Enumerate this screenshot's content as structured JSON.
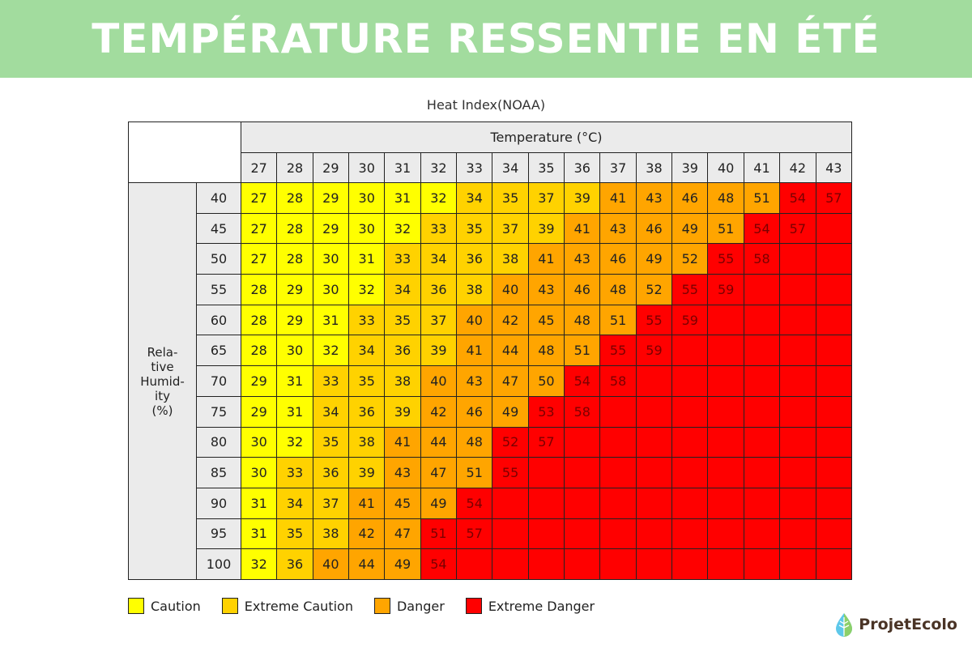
{
  "title": "TEMPÉRATURE RESSENTIE EN ÉTÉ",
  "brand": "ProjetEcolo",
  "colors": {
    "banner": "#a2dc9e",
    "C": "#ffff00",
    "EC": "#ffd200",
    "D": "#ffa500",
    "ED": "#ff0000"
  },
  "chart_data": {
    "type": "heatmap",
    "title": "Heat Index(NOAA)",
    "xlabel": "Temperature (°C)",
    "ylabel": "Rela- tive Humid- ity (%)",
    "x": [
      27,
      28,
      29,
      30,
      31,
      32,
      33,
      34,
      35,
      36,
      37,
      38,
      39,
      40,
      41,
      42,
      43
    ],
    "y": [
      40,
      45,
      50,
      55,
      60,
      65,
      70,
      75,
      80,
      85,
      90,
      95,
      100
    ],
    "values": [
      [
        27,
        28,
        29,
        30,
        31,
        32,
        34,
        35,
        37,
        39,
        41,
        43,
        46,
        48,
        51,
        54,
        57
      ],
      [
        27,
        28,
        29,
        30,
        32,
        33,
        35,
        37,
        39,
        41,
        43,
        46,
        49,
        51,
        54,
        57,
        null
      ],
      [
        27,
        28,
        30,
        31,
        33,
        34,
        36,
        38,
        41,
        43,
        46,
        49,
        52,
        55,
        58,
        null,
        null
      ],
      [
        28,
        29,
        30,
        32,
        34,
        36,
        38,
        40,
        43,
        46,
        48,
        52,
        55,
        59,
        null,
        null,
        null
      ],
      [
        28,
        29,
        31,
        33,
        35,
        37,
        40,
        42,
        45,
        48,
        51,
        55,
        59,
        null,
        null,
        null,
        null
      ],
      [
        28,
        30,
        32,
        34,
        36,
        39,
        41,
        44,
        48,
        51,
        55,
        59,
        null,
        null,
        null,
        null,
        null
      ],
      [
        29,
        31,
        33,
        35,
        38,
        40,
        43,
        47,
        50,
        54,
        58,
        null,
        null,
        null,
        null,
        null,
        null
      ],
      [
        29,
        31,
        34,
        36,
        39,
        42,
        46,
        49,
        53,
        58,
        null,
        null,
        null,
        null,
        null,
        null,
        null
      ],
      [
        30,
        32,
        35,
        38,
        41,
        44,
        48,
        52,
        57,
        null,
        null,
        null,
        null,
        null,
        null,
        null,
        null
      ],
      [
        30,
        33,
        36,
        39,
        43,
        47,
        51,
        55,
        null,
        null,
        null,
        null,
        null,
        null,
        null,
        null,
        null
      ],
      [
        31,
        34,
        37,
        41,
        45,
        49,
        54,
        null,
        null,
        null,
        null,
        null,
        null,
        null,
        null,
        null,
        null
      ],
      [
        31,
        35,
        38,
        42,
        47,
        51,
        57,
        null,
        null,
        null,
        null,
        null,
        null,
        null,
        null,
        null,
        null
      ],
      [
        32,
        36,
        40,
        44,
        49,
        54,
        null,
        null,
        null,
        null,
        null,
        null,
        null,
        null,
        null,
        null,
        null
      ]
    ],
    "categories_matrix": [
      "C C C C C C EC EC EC EC D D D D D ED ED",
      "C C C C C EC EC EC EC D D D D D ED ED ED",
      "C C C C EC EC EC EC D D D D D ED ED ED ED",
      "C C C C EC EC EC D D D D D ED ED ED ED ED",
      "C C C EC EC EC D D D D D ED ED ED ED ED ED",
      "C C C EC EC EC D D D D ED ED ED ED ED ED ED",
      "C C EC EC EC D D D D ED ED ED ED ED ED ED ED",
      "C C EC EC EC D D D ED ED ED ED ED ED ED ED ED",
      "C C EC EC D D D ED ED ED ED ED ED ED ED ED ED",
      "C EC EC EC D D D ED ED ED ED ED ED ED ED ED ED",
      "C EC EC D D D ED ED ED ED ED ED ED ED ED ED ED",
      "C EC EC D D ED ED ED ED ED ED ED ED ED ED ED ED",
      "C EC D D D ED ED ED ED ED ED ED ED ED ED ED ED"
    ],
    "legend": [
      {
        "key": "C",
        "label": "Caution"
      },
      {
        "key": "EC",
        "label": "Extreme Caution"
      },
      {
        "key": "D",
        "label": "Danger"
      },
      {
        "key": "ED",
        "label": "Extreme Danger"
      }
    ],
    "legend_position": "bottom-left"
  }
}
